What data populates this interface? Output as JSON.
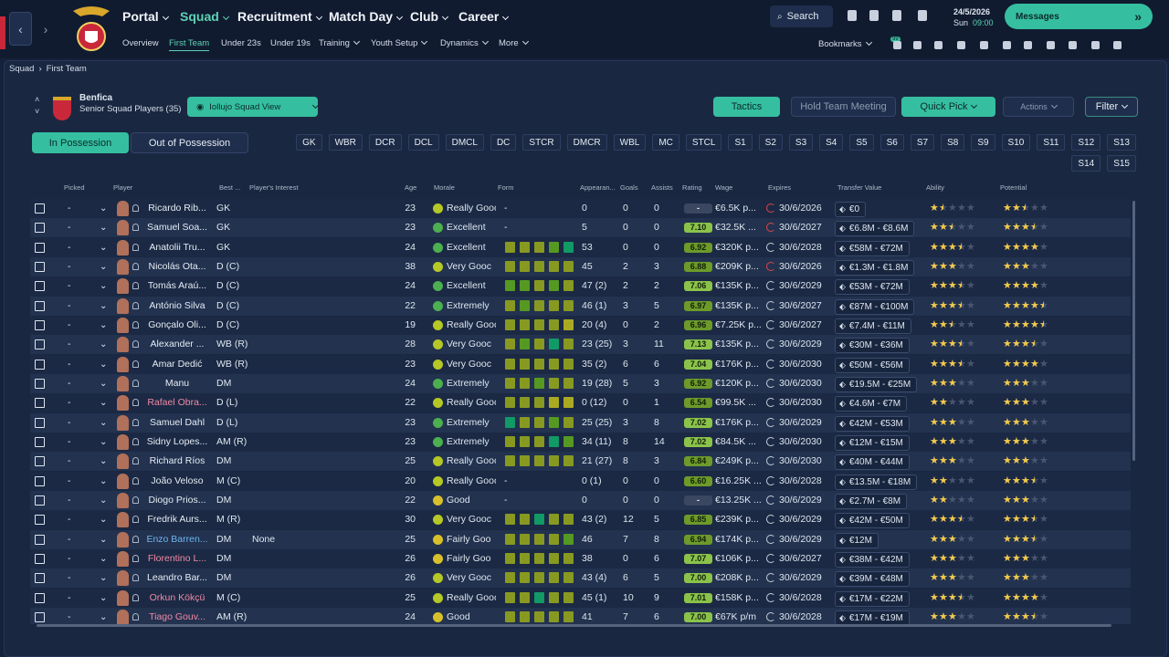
{
  "nav": {
    "tabs": [
      "Portal",
      "Squad",
      "Recruitment",
      "Match Day",
      "Club",
      "Career"
    ],
    "subtabs": [
      "Overview",
      "First Team",
      "Under 23s",
      "Under 19s",
      "Training",
      "Youth Setup",
      "Dynamics",
      "More"
    ],
    "search": "Search",
    "date": "24/5/2026",
    "day": "Sun",
    "time": "09:00",
    "messages": "Messages",
    "bookmarks": "Bookmarks",
    "badge": "99"
  },
  "breadcrumb": [
    "Squad",
    "First Team"
  ],
  "team": {
    "name": "Benfica",
    "subtitle": "Senior Squad Players (35)",
    "view": "Iollujo Squad View"
  },
  "buttons": {
    "tactics": "Tactics",
    "meeting": "Hold Team Meeting",
    "quick_pick": "Quick Pick",
    "actions": "Actions",
    "filter": "Filter"
  },
  "toggle": [
    "In Possession",
    "Out of Possession"
  ],
  "positions": [
    "GK",
    "WBR",
    "DCR",
    "DCL",
    "DMCL",
    "DC",
    "STCR",
    "DMCR",
    "WBL",
    "MC",
    "STCL",
    "S1",
    "S2",
    "S3",
    "S4",
    "S5",
    "S6",
    "S7",
    "S8",
    "S9",
    "S10",
    "S11",
    "S12",
    "S13",
    "S14",
    "S15"
  ],
  "table": {
    "columns": [
      "Picked",
      "Player",
      "Best ...",
      "Player's Interest",
      "Age",
      "Morale",
      "Form",
      "Appearan...",
      "Goals",
      "Assists",
      "Rating",
      "Wage",
      "Expires",
      "Transfer Value",
      "Ability",
      "Potential"
    ],
    "rows": [
      {
        "picked": "-",
        "name": "Ricardo Rib...",
        "pos": "GK",
        "interest": "",
        "age": "23",
        "morale": "Really Gooc",
        "morale_color": "#b5c825",
        "form": "-",
        "apps": "0",
        "goals": "0",
        "assists": "0",
        "rating": "-",
        "wage": "€6.5K p...",
        "expires": "30/6/2026",
        "expires_color": "#e04848",
        "value": "€0",
        "ability": 1.5,
        "potential": 2.5
      },
      {
        "picked": "-",
        "name": "Samuel Soa...",
        "pos": "GK",
        "interest": "",
        "age": "23",
        "morale": "Excellent",
        "morale_color": "#4caf50",
        "form": "-",
        "apps": "5",
        "goals": "0",
        "assists": "0",
        "rating": "7.10",
        "wage": "€32.5K ...",
        "expires": "30/6/2027",
        "expires_color": "#e04848",
        "value": "€6.8M - €8.6M",
        "ability": 2.5,
        "potential": 3.5
      },
      {
        "picked": "-",
        "name": "Anatolii Tru...",
        "pos": "GK",
        "interest": "",
        "age": "24",
        "morale": "Excellent",
        "morale_color": "#4caf50",
        "form": [
          "#892",
          "#892",
          "#892",
          "#592",
          "#196"
        ],
        "apps": "53",
        "goals": "0",
        "assists": "0",
        "rating": "6.92",
        "wage": "€320K p...",
        "expires": "30/6/2028",
        "value": "€58M - €72M",
        "ability": 3.5,
        "potential": 4
      },
      {
        "picked": "-",
        "name": "Nicolás Ota...",
        "pos": "D (C)",
        "interest": "",
        "age": "38",
        "morale": "Very Gooc",
        "morale_color": "#b5c825",
        "form": [
          "#892",
          "#892",
          "#892",
          "#892",
          "#892"
        ],
        "apps": "45",
        "goals": "2",
        "assists": "3",
        "rating": "6.88",
        "wage": "€209K p...",
        "expires": "30/6/2026",
        "expires_color": "#e04848",
        "value": "€1.3M - €1.8M",
        "ability": 3,
        "potential": 3
      },
      {
        "picked": "-",
        "name": "Tomás Araú...",
        "pos": "D (C)",
        "interest": "",
        "age": "24",
        "morale": "Excellent",
        "morale_color": "#4caf50",
        "form": [
          "#592",
          "#592",
          "#892",
          "#592",
          "#892"
        ],
        "apps": "47 (2)",
        "goals": "2",
        "assists": "2",
        "rating": "7.06",
        "wage": "€135K p...",
        "expires": "30/6/2029",
        "value": "€53M - €72M",
        "ability": 3.5,
        "potential": 4
      },
      {
        "picked": "-",
        "name": "António Silva",
        "pos": "D (C)",
        "interest": "",
        "age": "22",
        "morale": "Extremely",
        "morale_color": "#4caf50",
        "form": [
          "#892",
          "#592",
          "#892",
          "#892",
          "#892"
        ],
        "apps": "46 (1)",
        "goals": "3",
        "assists": "5",
        "rating": "6.97",
        "wage": "€135K p...",
        "expires": "30/6/2027",
        "value": "€87M - €100M",
        "ability": 3.5,
        "potential": 4.5
      },
      {
        "picked": "-",
        "name": "Gonçalo Oli...",
        "pos": "D (C)",
        "interest": "",
        "age": "19",
        "morale": "Really Gooc",
        "morale_color": "#b5c825",
        "form": [
          "#892",
          "#892",
          "#892",
          "#892",
          "#aa2"
        ],
        "apps": "20 (4)",
        "goals": "0",
        "assists": "2",
        "rating": "6.96",
        "wage": "€7.25K p...",
        "expires": "30/6/2027",
        "value": "€7.4M - €11M",
        "ability": 2.5,
        "potential": 4.5
      },
      {
        "picked": "-",
        "name": "Alexander ...",
        "pos": "WB (R)",
        "interest": "",
        "age": "28",
        "morale": "Very Gooc",
        "morale_color": "#b5c825",
        "form": [
          "#892",
          "#592",
          "#892",
          "#196",
          "#892"
        ],
        "apps": "23 (25)",
        "goals": "3",
        "assists": "11",
        "rating": "7.13",
        "wage": "€135K p...",
        "expires": "30/6/2029",
        "value": "€30M - €36M",
        "ability": 3.5,
        "potential": 3.5
      },
      {
        "picked": "-",
        "name": "Amar Dedić",
        "pos": "WB (R)",
        "interest": "",
        "age": "23",
        "morale": "Very Gooc",
        "morale_color": "#b5c825",
        "form": [
          "#892",
          "#892",
          "#892",
          "#892",
          "#892"
        ],
        "apps": "35 (2)",
        "goals": "6",
        "assists": "6",
        "rating": "7.04",
        "wage": "€176K p...",
        "expires": "30/6/2030",
        "value": "€50M - €56M",
        "ability": 3.5,
        "potential": 4
      },
      {
        "picked": "-",
        "name": "Manu",
        "pos": "DM",
        "interest": "",
        "age": "24",
        "morale": "Extremely",
        "morale_color": "#4caf50",
        "form": [
          "#892",
          "#892",
          "#592",
          "#892",
          "#892"
        ],
        "apps": "19 (28)",
        "goals": "5",
        "assists": "3",
        "rating": "6.92",
        "wage": "€120K p...",
        "expires": "30/6/2030",
        "value": "€19.5M - €25M",
        "ability": 3,
        "potential": 3
      },
      {
        "picked": "-",
        "name": "Rafael Obra...",
        "name_color": "#f08aa6",
        "pos": "D (L)",
        "interest": "",
        "age": "22",
        "morale": "Really Gooc",
        "morale_color": "#b5c825",
        "form": [
          "#892",
          "#892",
          "#892",
          "#aa2",
          "#aa2"
        ],
        "apps": "0 (12)",
        "goals": "0",
        "assists": "1",
        "rating": "6.54",
        "wage": "€99.5K ...",
        "expires": "30/6/2030",
        "value": "€4.6M - €7M",
        "ability": 2,
        "potential": 3
      },
      {
        "picked": "-",
        "name": "Samuel Dahl",
        "pos": "D (L)",
        "interest": "",
        "age": "23",
        "morale": "Extremely",
        "morale_color": "#4caf50",
        "form": [
          "#196",
          "#892",
          "#892",
          "#592",
          "#892"
        ],
        "apps": "25 (25)",
        "goals": "3",
        "assists": "8",
        "rating": "7.02",
        "wage": "€176K p...",
        "expires": "30/6/2029",
        "value": "€42M - €53M",
        "ability": 3,
        "potential": 3
      },
      {
        "picked": "-",
        "name": "Sidny Lopes...",
        "pos": "AM (R)",
        "interest": "",
        "age": "23",
        "morale": "Extremely",
        "morale_color": "#4caf50",
        "form": [
          "#892",
          "#892",
          "#892",
          "#196",
          "#592"
        ],
        "apps": "34 (11)",
        "goals": "8",
        "assists": "14",
        "rating": "7.02",
        "wage": "€84.5K ...",
        "expires": "30/6/2030",
        "value": "€12M - €15M",
        "ability": 3,
        "potential": 3
      },
      {
        "picked": "-",
        "name": "Richard Ríos",
        "pos": "DM",
        "interest": "",
        "age": "25",
        "morale": "Really Gooc",
        "morale_color": "#b5c825",
        "form": [
          "#892",
          "#892",
          "#892",
          "#892",
          "#892"
        ],
        "apps": "21 (27)",
        "goals": "8",
        "assists": "3",
        "rating": "6.84",
        "wage": "€249K p...",
        "expires": "30/6/2030",
        "value": "€40M - €44M",
        "ability": 3,
        "potential": 3
      },
      {
        "picked": "-",
        "name": "João Veloso",
        "pos": "M (C)",
        "interest": "",
        "age": "20",
        "morale": "Really Gooc",
        "morale_color": "#b5c825",
        "form": "-",
        "apps": "0 (1)",
        "goals": "0",
        "assists": "0",
        "rating": "6.60",
        "wage": "€16.25K ...",
        "expires": "30/6/2028",
        "value": "€13.5M - €18M",
        "ability": 2,
        "potential": 3.5
      },
      {
        "picked": "-",
        "name": "Diogo Prios...",
        "pos": "DM",
        "interest": "",
        "age": "22",
        "morale": "Good",
        "morale_color": "#d8c02b",
        "form": "-",
        "apps": "0",
        "goals": "0",
        "assists": "0",
        "rating": "-",
        "wage": "€13.25K ...",
        "expires": "30/6/2029",
        "value": "€2.7M - €8M",
        "ability": 2,
        "potential": 3
      },
      {
        "picked": "-",
        "name": "Fredrik Aurs...",
        "pos": "M (R)",
        "interest": "",
        "age": "30",
        "morale": "Very Gooc",
        "morale_color": "#b5c825",
        "form": [
          "#892",
          "#892",
          "#196",
          "#892",
          "#892"
        ],
        "apps": "43 (2)",
        "goals": "12",
        "assists": "5",
        "rating": "6.85",
        "wage": "€239K p...",
        "expires": "30/6/2029",
        "value": "€42M - €50M",
        "ability": 3.5,
        "potential": 3.5
      },
      {
        "picked": "-",
        "name": "Enzo Barren...",
        "name_color": "#6fb6f0",
        "pos": "DM",
        "interest": "None",
        "age": "25",
        "morale": "Fairly Goo",
        "morale_color": "#d8c02b",
        "form": [
          "#892",
          "#892",
          "#892",
          "#892",
          "#592"
        ],
        "apps": "46",
        "goals": "7",
        "assists": "8",
        "rating": "6.94",
        "wage": "€174K p...",
        "expires": "30/6/2029",
        "value": "€12M",
        "ability": 3,
        "potential": 3.5
      },
      {
        "picked": "-",
        "name": "Florentino L...",
        "name_color": "#f08aa6",
        "pos": "DM",
        "interest": "",
        "age": "26",
        "morale": "Fairly Goo",
        "morale_color": "#d8c02b",
        "form": [
          "#892",
          "#892",
          "#892",
          "#892",
          "#892"
        ],
        "apps": "38",
        "goals": "0",
        "assists": "6",
        "rating": "7.07",
        "wage": "€106K p...",
        "expires": "30/6/2027",
        "value": "€38M - €42M",
        "ability": 3,
        "potential": 3
      },
      {
        "picked": "-",
        "name": "Leandro Bar...",
        "pos": "DM",
        "interest": "",
        "age": "26",
        "morale": "Very Gooc",
        "morale_color": "#b5c825",
        "form": [
          "#892",
          "#892",
          "#892",
          "#892",
          "#892"
        ],
        "apps": "43 (4)",
        "goals": "6",
        "assists": "5",
        "rating": "7.00",
        "wage": "€208K p...",
        "expires": "30/6/2029",
        "value": "€39M - €48M",
        "ability": 3,
        "potential": 3
      },
      {
        "picked": "-",
        "name": "Orkun Kökçü",
        "name_color": "#f08aa6",
        "pos": "M (C)",
        "interest": "",
        "age": "25",
        "morale": "Really Gooc",
        "morale_color": "#b5c825",
        "form": [
          "#892",
          "#892",
          "#196",
          "#892",
          "#892"
        ],
        "apps": "45 (1)",
        "goals": "10",
        "assists": "9",
        "rating": "7.01",
        "wage": "€158K p...",
        "expires": "30/6/2028",
        "value": "€17M - €22M",
        "ability": 3.5,
        "potential": 4
      },
      {
        "picked": "-",
        "name": "Tiago Gouv...",
        "name_color": "#f08aa6",
        "pos": "AM (R)",
        "interest": "",
        "age": "24",
        "morale": "Good",
        "morale_color": "#d8c02b",
        "form": [
          "#892",
          "#892",
          "#892",
          "#892",
          "#892"
        ],
        "apps": "41",
        "goals": "7",
        "assists": "6",
        "rating": "7.00",
        "wage": "€67K p/m",
        "expires": "30/6/2028",
        "value": "€17M - €19M",
        "ability": 3,
        "potential": 3.5
      }
    ]
  }
}
